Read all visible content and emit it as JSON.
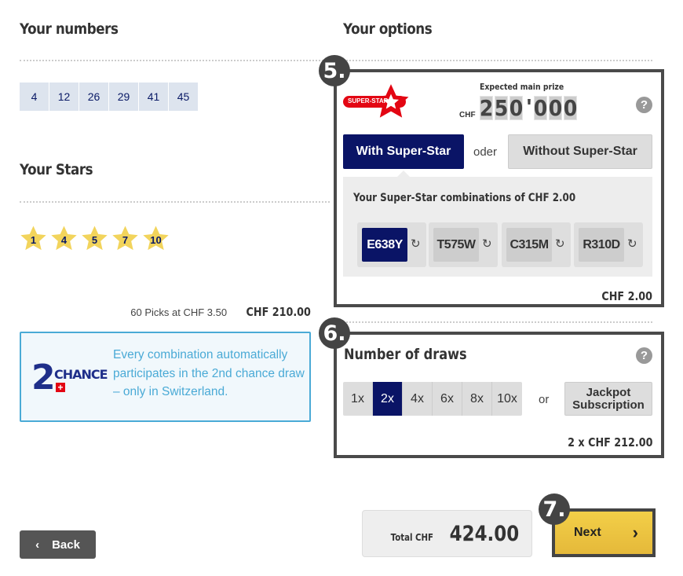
{
  "left": {
    "numbers_title": "Your numbers",
    "numbers": [
      "4",
      "12",
      "26",
      "29",
      "41",
      "45"
    ],
    "stars_title": "Your Stars",
    "stars": [
      "1",
      "4",
      "5",
      "7",
      "10"
    ],
    "picks_text": "60 Picks at CHF  3.50",
    "picks_total": "CHF 210.00",
    "second_chance": {
      "logo_text": "2 CHANCE",
      "text": "Every combination automatically participates in the 2nd chance draw – only in Switzerland."
    }
  },
  "options": {
    "title": "Your options",
    "step5": "5.",
    "logo_text": "SUPER-STAR",
    "expected_label": "Expected main prize",
    "currency": "CHF",
    "prize_digits": [
      "2",
      "5",
      "0",
      "'",
      "0",
      "0",
      "0"
    ],
    "help": "?",
    "with_label": "With Super-Star",
    "or_label": "oder",
    "without_label": "Without Super-Star",
    "combos_title": "Your Super-Star combinations of CHF 2.00",
    "combos": [
      "E638Y",
      "T575W",
      "C315M",
      "R310D"
    ],
    "subtotal": "CHF 2.00"
  },
  "draws": {
    "step6": "6.",
    "title": "Number of draws",
    "help": "?",
    "options": [
      "1x",
      "2x",
      "4x",
      "6x",
      "8x",
      "10x"
    ],
    "selected": "2x",
    "or_label": "or",
    "jackpot_label": "Jackpot Subscription",
    "subtotal": "2 x CHF 212.00"
  },
  "footer": {
    "back_label": "Back",
    "total_label": "Total CHF",
    "total_value": "424.00",
    "step7": "7.",
    "next_label": "Next"
  },
  "colors": {
    "navy": "#0a1466",
    "yellow": "#f2c94c",
    "frame": "#4a4a4a",
    "chance_border": "#4aaad6"
  }
}
